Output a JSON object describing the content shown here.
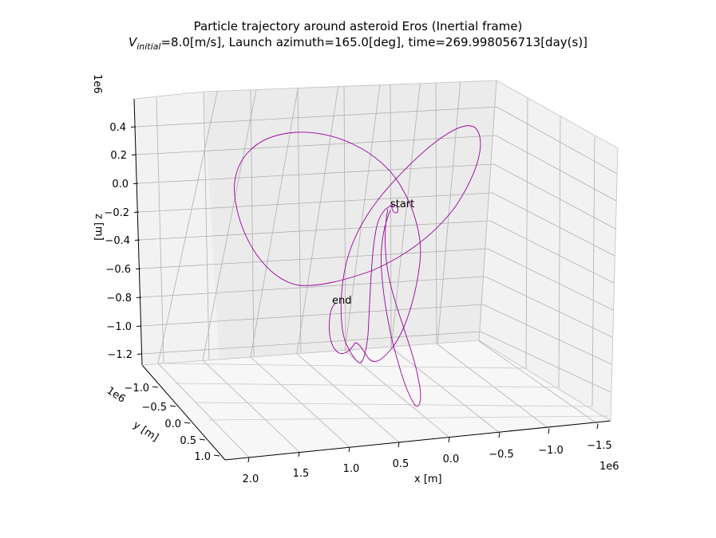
{
  "title": {
    "line1": "Particle trajectory around asteroid Eros (Inertial frame)",
    "line2_prefix": "V",
    "line2_subscript": "initial",
    "line2_rest": "=8.0[m/s], Launch azimuth=165.0[deg], time=269.998056713[day(s)]"
  },
  "chart_data": {
    "type": "line3d",
    "series": [
      {
        "color": "#990099"
      }
    ],
    "axes": {
      "x": {
        "label": "x [m]",
        "offset_text": "1e6",
        "ticks": [
          "2.0",
          "1.5",
          "1.0",
          "0.5",
          "0.0",
          "−0.5",
          "−1.0",
          "−1.5"
        ]
      },
      "y": {
        "label": "y [m]",
        "offset_text": "1e6",
        "ticks": [
          "−1.0",
          "−0.5",
          "0.0",
          "0.5",
          "1.0"
        ]
      },
      "z": {
        "label": "z [m]",
        "offset_text": "1e6",
        "ticks": [
          "0.4",
          "0.2",
          "0.0",
          "−0.2",
          "−0.4",
          "−0.6",
          "−0.8",
          "−1.0",
          "−1.2"
        ]
      }
    },
    "annotations": [
      {
        "text": "start"
      },
      {
        "text": "end"
      }
    ],
    "grid": true
  }
}
